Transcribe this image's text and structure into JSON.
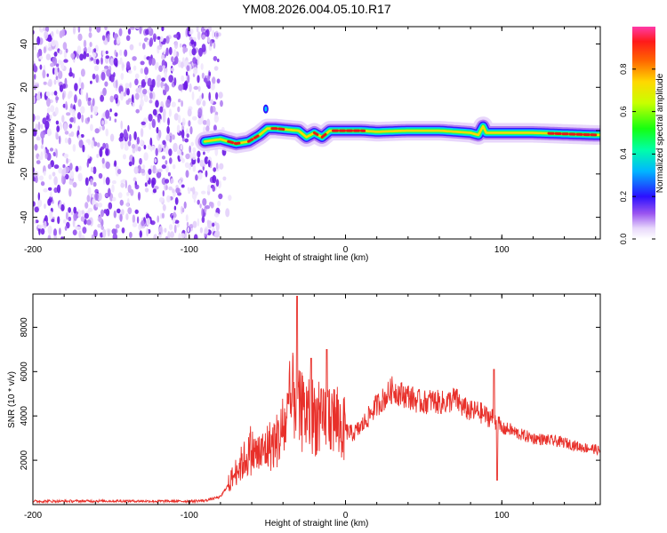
{
  "figure": {
    "title": "YM08.2026.004.05.10.R17"
  },
  "chart_data": [
    {
      "type": "heatmap",
      "title": "YM08.2026.004.05.10.R17",
      "xlabel": "Height of straight line (km)",
      "ylabel": "Frequency (Hz)",
      "xlim": [
        -200,
        163
      ],
      "ylim": [
        -50,
        48
      ],
      "x_ticks": [
        -200,
        -100,
        0,
        100
      ],
      "x_tick_labels": [
        "-200",
        "-100",
        "0",
        "100"
      ],
      "y_ticks": [
        -40,
        -20,
        0,
        20,
        40
      ],
      "y_tick_labels": [
        "-40",
        "-20",
        "0",
        "20",
        "40"
      ],
      "noise_region_x": [
        -200,
        -80
      ],
      "ridge": {
        "description_points_x": [
          -90,
          -80,
          -70,
          -62,
          -55,
          -50,
          -45,
          -38,
          -30,
          -25,
          -20,
          -15,
          -10,
          0,
          10,
          20,
          40,
          60,
          80,
          85,
          88,
          90,
          100,
          120,
          140,
          160
        ],
        "freq_hz": [
          -5,
          -4,
          -6,
          -5,
          -2,
          1,
          1,
          0.5,
          0,
          -3,
          -1,
          -3,
          0,
          0,
          0,
          -0.5,
          0,
          0,
          -1,
          -2,
          2,
          -1,
          -1,
          -1,
          -1.5,
          -2
        ]
      },
      "colorbar": {
        "label": "Normalized spectral amplitude",
        "range": [
          0,
          1
        ],
        "ticks": [
          0.0,
          0.2,
          0.4,
          0.6,
          0.8
        ],
        "tick_labels": [
          "0.0",
          "0.2",
          "0.4",
          "0.6",
          "0.8"
        ]
      }
    },
    {
      "type": "line",
      "title": "",
      "xlabel": "Height of straight line (km)",
      "ylabel": "SNR (10 * v/v)",
      "xlim": [
        -200,
        163
      ],
      "ylim": [
        0,
        9500
      ],
      "x_ticks": [
        -200,
        -100,
        0,
        100
      ],
      "x_tick_labels": [
        "-200",
        "-100",
        "0",
        "100"
      ],
      "y_ticks": [
        2000,
        4000,
        6000,
        8000
      ],
      "y_tick_labels": [
        "2000",
        "4000",
        "6000",
        "8000"
      ],
      "series": [
        {
          "name": "SNR",
          "color": "#e8302a",
          "x": [
            -200,
            -180,
            -160,
            -140,
            -120,
            -100,
            -90,
            -80,
            -75,
            -70,
            -65,
            -60,
            -55,
            -50,
            -45,
            -40,
            -35,
            -32,
            -30,
            -25,
            -20,
            -15,
            -10,
            -5,
            0,
            5,
            10,
            15,
            20,
            25,
            30,
            35,
            40,
            45,
            50,
            55,
            60,
            65,
            70,
            75,
            80,
            85,
            90,
            95,
            98,
            100,
            105,
            110,
            120,
            130,
            140,
            150,
            160,
            163
          ],
          "y": [
            150,
            150,
            160,
            160,
            150,
            150,
            180,
            350,
            900,
            1500,
            2000,
            2400,
            2200,
            2600,
            2800,
            3300,
            4400,
            5200,
            4200,
            4100,
            4000,
            3600,
            4100,
            3700,
            3300,
            3200,
            3500,
            4000,
            4500,
            4800,
            5200,
            5000,
            4900,
            4700,
            4600,
            4700,
            4600,
            4600,
            4800,
            4400,
            4200,
            4200,
            4000,
            3900,
            3600,
            3400,
            3400,
            3200,
            3000,
            2900,
            2800,
            2600,
            2500,
            2400
          ],
          "spikes": [
            {
              "x": -31,
              "y": 9400
            },
            {
              "x": -12,
              "y": 7000
            },
            {
              "x": -22,
              "y": 6600
            },
            {
              "x": 95,
              "y": 6100
            },
            {
              "x": 97,
              "y": 1100
            }
          ]
        }
      ]
    }
  ]
}
